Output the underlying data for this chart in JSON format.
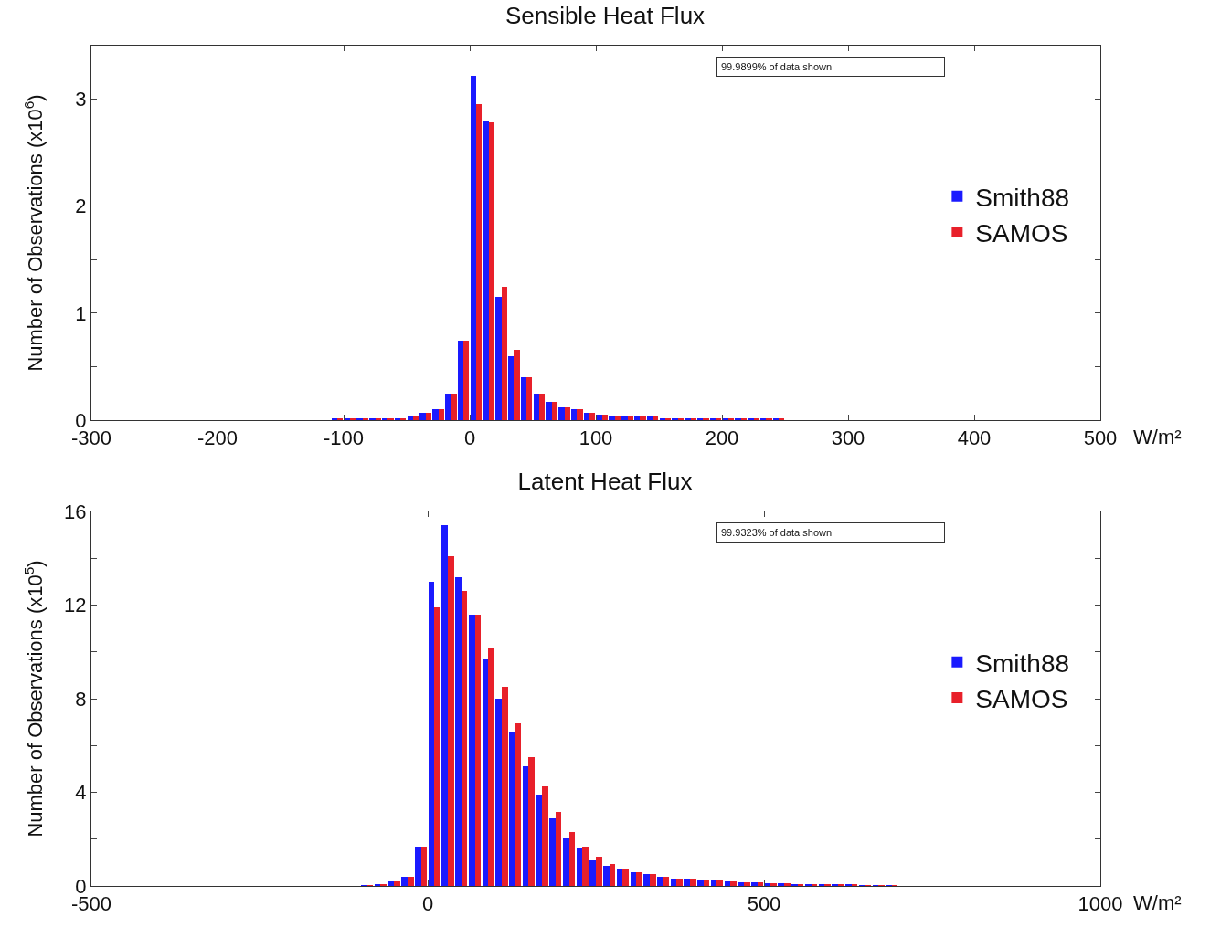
{
  "chart_data": [
    {
      "type": "histogram",
      "title": "Sensible Heat Flux",
      "xlabel": "W/m²",
      "ylabel": "Number of Observations (x10$^{6}$)",
      "annotations": [
        "99.9899% of data shown"
      ],
      "bins": [
        -150,
        -140,
        -130,
        -120,
        -110,
        -100,
        -90,
        -80,
        -70,
        -60,
        -50,
        -40,
        -30,
        -20,
        -10,
        0,
        10,
        20,
        30,
        40,
        50,
        60,
        70,
        80,
        90,
        100,
        110,
        120,
        130,
        140,
        150,
        160,
        170,
        180,
        190,
        200,
        210,
        220,
        230,
        240,
        250,
        260,
        270,
        280,
        290,
        300
      ],
      "series": [
        {
          "name": "Smith88",
          "color": "#1a1aff",
          "values": [
            0,
            0,
            0,
            0,
            0.01,
            0.01,
            0.01,
            0.01,
            0.01,
            0.02,
            0.04,
            0.07,
            0.1,
            0.25,
            0.74,
            3.22,
            2.8,
            1.15,
            0.6,
            0.4,
            0.25,
            0.17,
            0.12,
            0.1,
            0.07,
            0.05,
            0.04,
            0.04,
            0.03,
            0.03,
            0.02,
            0.02,
            0.02,
            0.01,
            0.01,
            0.01,
            0.01,
            0.01,
            0.01,
            0.01,
            0,
            0,
            0,
            0,
            0
          ]
        },
        {
          "name": "SAMOS",
          "color": "#e8202a",
          "values": [
            0,
            0,
            0,
            0,
            0.01,
            0.01,
            0.01,
            0.01,
            0.01,
            0.02,
            0.04,
            0.07,
            0.1,
            0.25,
            0.74,
            2.95,
            2.78,
            1.25,
            0.66,
            0.4,
            0.25,
            0.17,
            0.12,
            0.1,
            0.07,
            0.05,
            0.04,
            0.04,
            0.03,
            0.03,
            0.02,
            0.02,
            0.02,
            0.01,
            0.01,
            0.01,
            0.01,
            0.01,
            0.01,
            0.01,
            0,
            0,
            0,
            0,
            0
          ]
        }
      ],
      "xlim": [
        -300,
        500
      ],
      "xticks": [
        -300,
        -200,
        -100,
        0,
        100,
        200,
        300,
        400,
        500
      ],
      "ylim": [
        0,
        3.5
      ],
      "yticks": [
        0,
        {
          "value": 0.5,
          "label": null
        },
        1,
        {
          "value": 1.5,
          "label": null
        },
        2,
        {
          "value": 2.5,
          "label": null
        },
        3
      ],
      "legend": "right",
      "grid": false
    },
    {
      "type": "histogram",
      "title": "Latent Heat Flux",
      "xlabel": "W/m²",
      "ylabel": "Number of Observations (x10$^{5}$)",
      "annotations": [
        "99.9323% of data shown"
      ],
      "bins": [
        -100,
        -80,
        -60,
        -40,
        -20,
        0,
        20,
        40,
        60,
        80,
        100,
        120,
        140,
        160,
        180,
        200,
        220,
        240,
        260,
        280,
        300,
        320,
        340,
        360,
        380,
        400,
        420,
        440,
        460,
        480,
        500,
        520,
        540,
        560,
        580,
        600,
        620,
        640,
        660,
        680,
        700
      ],
      "series": [
        {
          "name": "Smith88",
          "color": "#1a1aff",
          "values": [
            0.02,
            0.05,
            0.18,
            0.4,
            1.66,
            13.0,
            15.4,
            13.2,
            11.6,
            9.7,
            8.0,
            6.6,
            5.1,
            3.9,
            2.9,
            2.05,
            1.6,
            1.1,
            0.85,
            0.75,
            0.6,
            0.5,
            0.4,
            0.33,
            0.3,
            0.25,
            0.22,
            0.2,
            0.17,
            0.15,
            0.12,
            0.1,
            0.08,
            0.06,
            0.05,
            0.04,
            0.04,
            0.03,
            0.03,
            0.02
          ]
        },
        {
          "name": "SAMOS",
          "color": "#e8202a",
          "values": [
            0.02,
            0.05,
            0.18,
            0.4,
            1.66,
            11.9,
            14.1,
            12.6,
            11.6,
            10.2,
            8.5,
            6.95,
            5.5,
            4.25,
            3.18,
            2.3,
            1.66,
            1.25,
            0.95,
            0.75,
            0.6,
            0.5,
            0.4,
            0.33,
            0.3,
            0.25,
            0.22,
            0.2,
            0.17,
            0.15,
            0.12,
            0.1,
            0.08,
            0.06,
            0.05,
            0.04,
            0.04,
            0.03,
            0.03,
            0.02
          ]
        }
      ],
      "xlim": [
        -500,
        1000
      ],
      "xticks": [
        -500,
        0,
        500,
        1000
      ],
      "ylim": [
        0,
        16
      ],
      "yticks": [
        0,
        {
          "value": 2,
          "label": null
        },
        4,
        {
          "value": 6,
          "label": null
        },
        8,
        {
          "value": 10,
          "label": null
        },
        12,
        {
          "value": 14,
          "label": null
        },
        16
      ],
      "legend": "right",
      "grid": false
    }
  ]
}
